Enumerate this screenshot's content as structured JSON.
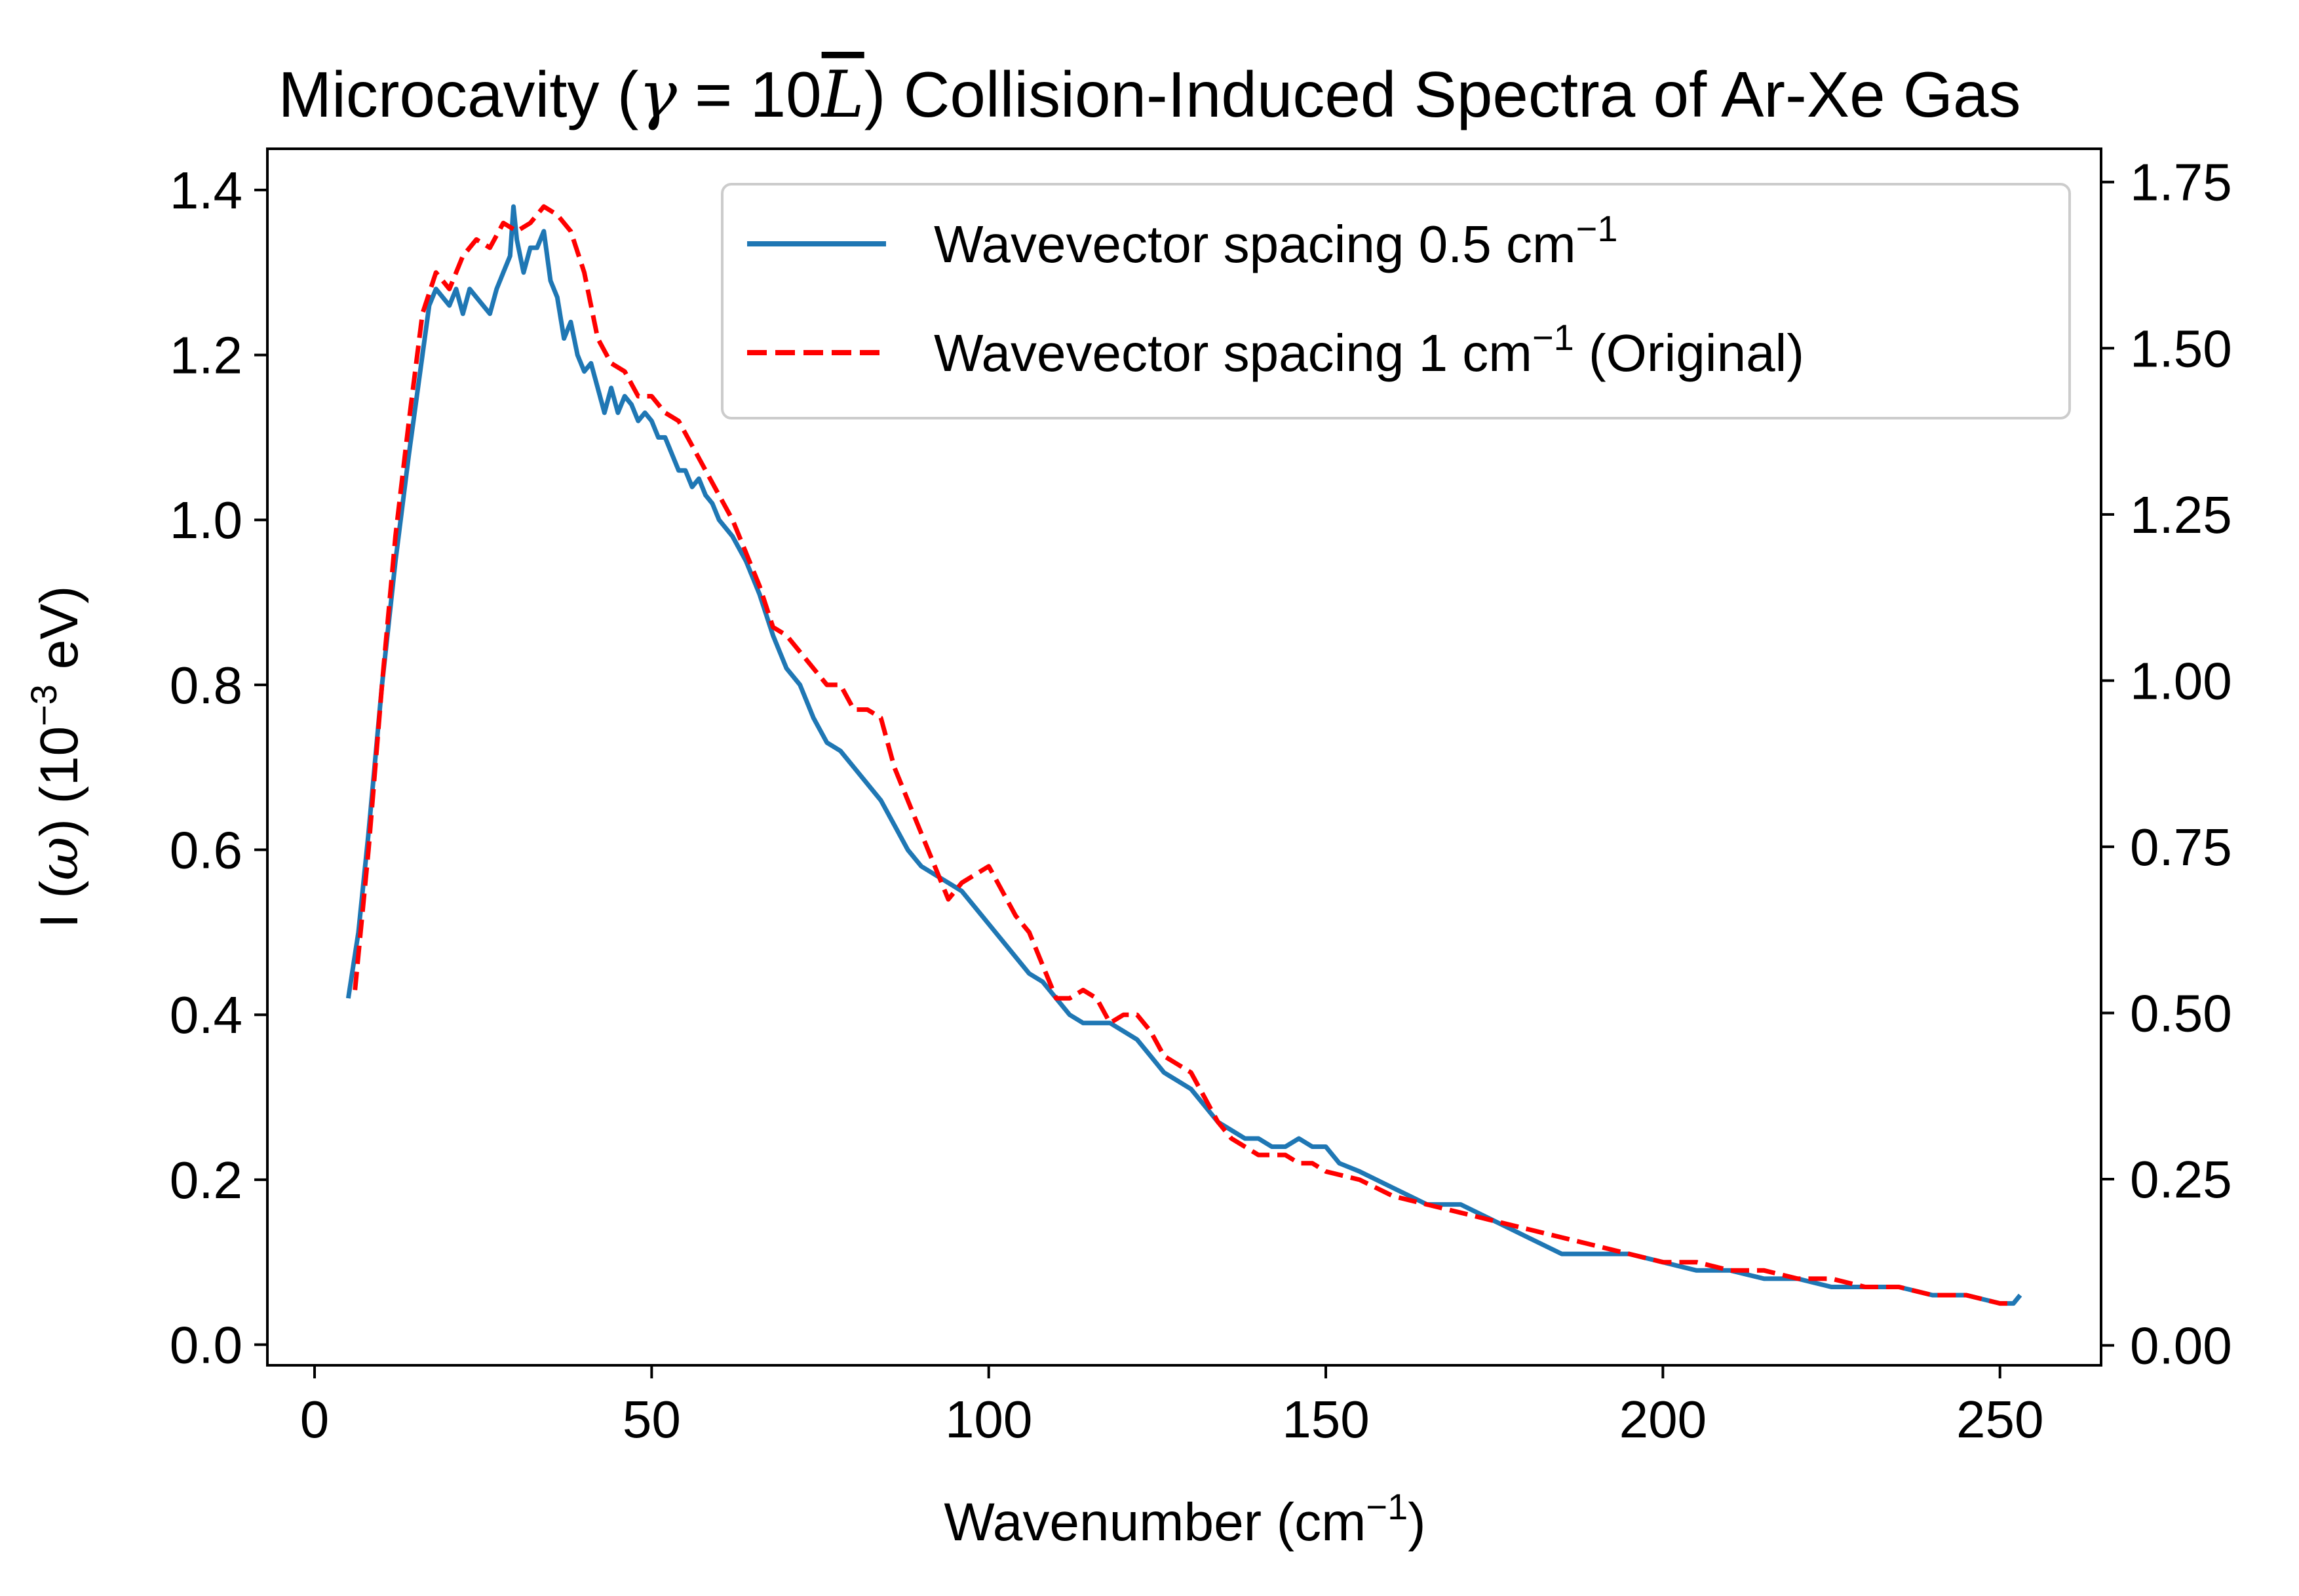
{
  "chart_data": {
    "type": "line",
    "title": {
      "prefix": "Microcavity (",
      "gamma": "γ",
      "equals": " = 10",
      "L": "L",
      "suffix": ") Collision-Induced Spectra of Ar-Xe Gas"
    },
    "xlabel": {
      "text": "Wavenumber (cm",
      "sup": "−1",
      "close": ")"
    },
    "ylabel": {
      "prefix": "I (",
      "omega": "ω",
      "middle": ") (10",
      "sup": "−3",
      "suffix": " eV)"
    },
    "xlim": [
      -7,
      265
    ],
    "ylim": [
      -0.025,
      1.45
    ],
    "y2lim": [
      -0.03,
      1.8
    ],
    "xticks": [
      0,
      50,
      100,
      150,
      200,
      250
    ],
    "xtick_labels": [
      "0",
      "50",
      "100",
      "150",
      "200",
      "250"
    ],
    "yticks": [
      0.0,
      0.2,
      0.4,
      0.6,
      0.8,
      1.0,
      1.2,
      1.4
    ],
    "ytick_labels": [
      "0.0",
      "0.2",
      "0.4",
      "0.6",
      "0.8",
      "1.0",
      "1.2",
      "1.4"
    ],
    "y2ticks": [
      0.0,
      0.25,
      0.5,
      0.75,
      1.0,
      1.25,
      1.5,
      1.75
    ],
    "y2tick_labels": [
      "0.00",
      "0.25",
      "0.50",
      "0.75",
      "1.00",
      "1.25",
      "1.50",
      "1.75"
    ],
    "grid": false,
    "legend_position": "top-right",
    "series": [
      {
        "name": "Wavevector spacing 0.5 cm",
        "name_sup": "−1",
        "name_suffix": "",
        "color": "#1f77b4",
        "style": "solid",
        "axis": "left",
        "x": [
          5,
          6.5,
          8,
          10,
          12,
          14,
          16,
          17,
          18,
          19,
          20,
          21,
          22,
          23,
          24,
          25,
          26,
          27,
          28,
          29,
          29.5,
          30,
          31,
          32,
          33,
          34,
          35,
          36,
          37,
          38,
          39,
          40,
          41,
          42,
          43,
          44,
          45,
          46,
          47,
          48,
          49,
          50,
          51,
          52,
          53,
          54,
          55,
          56,
          57,
          58,
          59,
          60,
          62,
          64,
          66,
          68,
          70,
          72,
          74,
          76,
          78,
          80,
          82,
          84,
          86,
          88,
          90,
          92,
          94,
          96,
          98,
          100,
          102,
          104,
          106,
          108,
          110,
          112,
          114,
          116,
          118,
          120,
          122,
          124,
          126,
          128,
          130,
          132,
          134,
          136,
          138,
          140,
          142,
          144,
          146,
          148,
          150,
          152,
          155,
          160,
          165,
          170,
          175,
          180,
          185,
          190,
          195,
          200,
          205,
          210,
          215,
          220,
          225,
          230,
          235,
          240,
          245,
          250,
          252,
          253
        ],
        "y": [
          0.42,
          0.5,
          0.62,
          0.8,
          0.95,
          1.08,
          1.2,
          1.26,
          1.28,
          1.27,
          1.26,
          1.28,
          1.25,
          1.28,
          1.27,
          1.26,
          1.25,
          1.28,
          1.3,
          1.32,
          1.38,
          1.34,
          1.3,
          1.33,
          1.33,
          1.35,
          1.29,
          1.27,
          1.22,
          1.24,
          1.2,
          1.18,
          1.19,
          1.16,
          1.13,
          1.16,
          1.13,
          1.15,
          1.14,
          1.12,
          1.13,
          1.12,
          1.1,
          1.1,
          1.08,
          1.06,
          1.06,
          1.04,
          1.05,
          1.03,
          1.02,
          1.0,
          0.98,
          0.95,
          0.91,
          0.86,
          0.82,
          0.8,
          0.76,
          0.73,
          0.72,
          0.7,
          0.68,
          0.66,
          0.63,
          0.6,
          0.58,
          0.57,
          0.56,
          0.55,
          0.53,
          0.51,
          0.49,
          0.47,
          0.45,
          0.44,
          0.42,
          0.4,
          0.39,
          0.39,
          0.39,
          0.38,
          0.37,
          0.35,
          0.33,
          0.32,
          0.31,
          0.29,
          0.27,
          0.26,
          0.25,
          0.25,
          0.24,
          0.24,
          0.25,
          0.24,
          0.24,
          0.22,
          0.21,
          0.19,
          0.17,
          0.17,
          0.15,
          0.13,
          0.11,
          0.11,
          0.11,
          0.1,
          0.09,
          0.09,
          0.08,
          0.08,
          0.07,
          0.07,
          0.07,
          0.06,
          0.06,
          0.05,
          0.05,
          0.06
        ]
      },
      {
        "name": "Wavevector spacing 1 cm",
        "name_sup": "−1",
        "name_suffix": " (Original)",
        "color": "#ff0000",
        "style": "dashed",
        "axis": "left",
        "x": [
          6,
          8,
          10,
          12,
          14,
          16,
          18,
          20,
          22,
          24,
          26,
          28,
          30,
          32,
          34,
          36,
          38,
          40,
          42,
          44,
          46,
          48,
          50,
          52,
          54,
          56,
          58,
          60,
          62,
          64,
          66,
          68,
          70,
          72,
          74,
          76,
          78,
          80,
          82,
          84,
          86,
          88,
          90,
          92,
          94,
          96,
          98,
          100,
          102,
          104,
          106,
          108,
          110,
          112,
          114,
          116,
          118,
          120,
          122,
          124,
          126,
          128,
          130,
          132,
          134,
          136,
          138,
          140,
          142,
          144,
          146,
          148,
          150,
          155,
          160,
          165,
          170,
          175,
          180,
          185,
          190,
          195,
          200,
          205,
          210,
          215,
          220,
          225,
          230,
          235,
          240,
          245,
          250,
          252
        ],
        "y": [
          0.43,
          0.6,
          0.8,
          0.98,
          1.12,
          1.25,
          1.3,
          1.28,
          1.32,
          1.34,
          1.33,
          1.36,
          1.35,
          1.36,
          1.38,
          1.37,
          1.35,
          1.3,
          1.22,
          1.19,
          1.18,
          1.15,
          1.15,
          1.13,
          1.12,
          1.09,
          1.06,
          1.03,
          1.0,
          0.96,
          0.92,
          0.87,
          0.86,
          0.84,
          0.82,
          0.8,
          0.8,
          0.77,
          0.77,
          0.76,
          0.7,
          0.66,
          0.62,
          0.58,
          0.54,
          0.56,
          0.57,
          0.58,
          0.55,
          0.52,
          0.5,
          0.46,
          0.42,
          0.42,
          0.43,
          0.42,
          0.39,
          0.4,
          0.4,
          0.38,
          0.35,
          0.34,
          0.33,
          0.3,
          0.27,
          0.25,
          0.24,
          0.23,
          0.23,
          0.23,
          0.22,
          0.22,
          0.21,
          0.2,
          0.18,
          0.17,
          0.16,
          0.15,
          0.14,
          0.13,
          0.12,
          0.11,
          0.1,
          0.1,
          0.09,
          0.09,
          0.08,
          0.08,
          0.07,
          0.07,
          0.06,
          0.06,
          0.05,
          0.05
        ]
      }
    ]
  }
}
